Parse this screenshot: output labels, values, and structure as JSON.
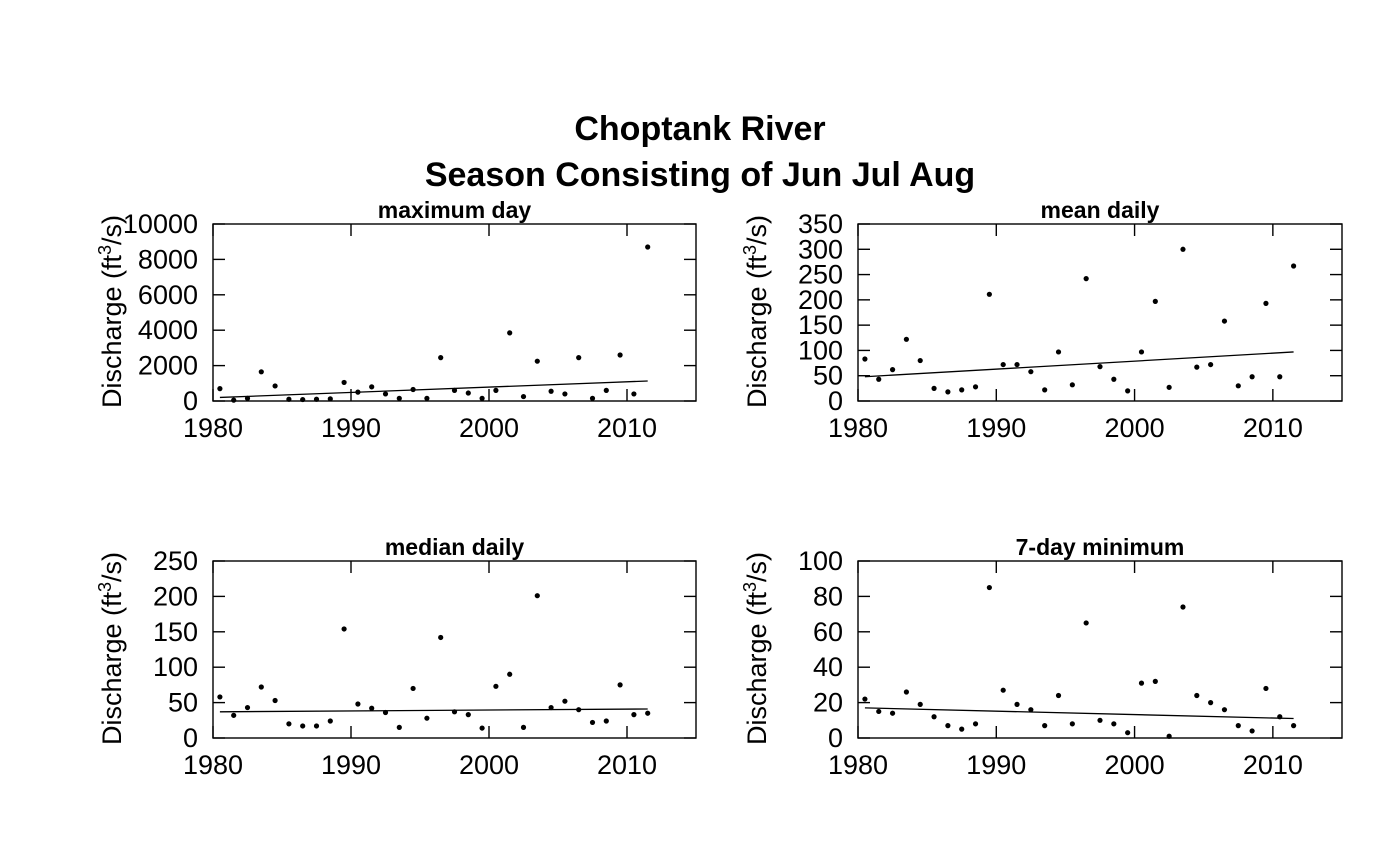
{
  "title_lines": [
    "Choptank River",
    "Season Consisting of Jun Jul Aug"
  ],
  "chart_data": [
    {
      "type": "scatter",
      "title": "maximum day",
      "ylabel": "Discharge (ft3/s)",
      "xlim": [
        1980,
        2015
      ],
      "ylim": [
        0,
        10000
      ],
      "xticks": [
        1980,
        1990,
        2000,
        2010
      ],
      "yticks": [
        0,
        2000,
        4000,
        6000,
        8000,
        10000
      ],
      "points": {
        "x": [
          1980.5,
          1981.5,
          1982.5,
          1983.5,
          1984.5,
          1985.5,
          1986.5,
          1987.5,
          1988.5,
          1989.5,
          1990.5,
          1991.5,
          1992.5,
          1993.5,
          1994.5,
          1995.5,
          1996.5,
          1997.5,
          1998.5,
          1999.5,
          2000.5,
          2001.5,
          2002.5,
          2003.5,
          2004.5,
          2005.5,
          2006.5,
          2007.5,
          2008.5,
          2009.5,
          2010.5,
          2011.5
        ],
        "y": [
          700,
          50,
          150,
          1650,
          850,
          100,
          80,
          100,
          120,
          1050,
          500,
          800,
          400,
          150,
          650,
          150,
          2450,
          600,
          450,
          150,
          600,
          3850,
          250,
          2250,
          550,
          400,
          2450,
          150,
          600,
          2600,
          400,
          8700
        ]
      },
      "trend": {
        "x": [
          1980.5,
          2011.5
        ],
        "y": [
          200,
          1130
        ]
      }
    },
    {
      "type": "scatter",
      "title": "mean daily",
      "ylabel": "Discharge (ft3/s)",
      "xlim": [
        1980,
        2015
      ],
      "ylim": [
        0,
        350
      ],
      "xticks": [
        1980,
        1990,
        2000,
        2010
      ],
      "yticks": [
        0,
        50,
        100,
        150,
        200,
        250,
        300,
        350
      ],
      "points": {
        "x": [
          1980.5,
          1981.5,
          1982.5,
          1983.5,
          1984.5,
          1985.5,
          1986.5,
          1987.5,
          1988.5,
          1989.5,
          1990.5,
          1991.5,
          1992.5,
          1993.5,
          1994.5,
          1995.5,
          1996.5,
          1997.5,
          1998.5,
          1999.5,
          2000.5,
          2001.5,
          2002.5,
          2003.5,
          2004.5,
          2005.5,
          2006.5,
          2007.5,
          2008.5,
          2009.5,
          2010.5,
          2011.5
        ],
        "y": [
          83,
          43,
          62,
          122,
          80,
          25,
          18,
          22,
          28,
          211,
          72,
          72,
          58,
          22,
          97,
          32,
          242,
          68,
          43,
          20,
          97,
          197,
          27,
          300,
          67,
          72,
          158,
          30,
          48,
          193,
          48,
          267
        ]
      },
      "trend": {
        "x": [
          1980.5,
          2011.5
        ],
        "y": [
          48,
          97
        ]
      }
    },
    {
      "type": "scatter",
      "title": "median daily",
      "ylabel": "Discharge (ft3/s)",
      "xlim": [
        1980,
        2015
      ],
      "ylim": [
        0,
        250
      ],
      "xticks": [
        1980,
        1990,
        2000,
        2010
      ],
      "yticks": [
        0,
        50,
        100,
        150,
        200,
        250
      ],
      "points": {
        "x": [
          1980.5,
          1981.5,
          1982.5,
          1983.5,
          1984.5,
          1985.5,
          1986.5,
          1987.5,
          1988.5,
          1989.5,
          1990.5,
          1991.5,
          1992.5,
          1993.5,
          1994.5,
          1995.5,
          1996.5,
          1997.5,
          1998.5,
          1999.5,
          2000.5,
          2001.5,
          2002.5,
          2003.5,
          2004.5,
          2005.5,
          2006.5,
          2007.5,
          2008.5,
          2009.5,
          2010.5,
          2011.5
        ],
        "y": [
          58,
          32,
          43,
          72,
          53,
          20,
          17,
          17,
          24,
          154,
          48,
          42,
          36,
          15,
          70,
          28,
          142,
          37,
          33,
          14,
          73,
          90,
          15,
          201,
          43,
          52,
          40,
          22,
          24,
          75,
          33,
          35
        ]
      },
      "trend": {
        "x": [
          1980.5,
          2011.5
        ],
        "y": [
          37,
          41
        ]
      }
    },
    {
      "type": "scatter",
      "title": "7-day minimum",
      "ylabel": "Discharge (ft3/s)",
      "xlim": [
        1980,
        2015
      ],
      "ylim": [
        0,
        100
      ],
      "xticks": [
        1980,
        1990,
        2000,
        2010
      ],
      "yticks": [
        0,
        20,
        40,
        60,
        80,
        100
      ],
      "points": {
        "x": [
          1980.5,
          1981.5,
          1982.5,
          1983.5,
          1984.5,
          1985.5,
          1986.5,
          1987.5,
          1988.5,
          1989.5,
          1990.5,
          1991.5,
          1992.5,
          1993.5,
          1994.5,
          1995.5,
          1996.5,
          1997.5,
          1998.5,
          1999.5,
          2000.5,
          2001.5,
          2002.5,
          2003.5,
          2004.5,
          2005.5,
          2006.5,
          2007.5,
          2008.5,
          2009.5,
          2010.5,
          2011.5
        ],
        "y": [
          22,
          15,
          14,
          26,
          19,
          12,
          7,
          5,
          8,
          85,
          27,
          19,
          16,
          7,
          24,
          8,
          65,
          10,
          8,
          3,
          31,
          32,
          1,
          74,
          24,
          20,
          16,
          7,
          4,
          28,
          12,
          7
        ]
      },
      "trend": {
        "x": [
          1980.5,
          2011.5
        ],
        "y": [
          17,
          11
        ]
      }
    }
  ]
}
